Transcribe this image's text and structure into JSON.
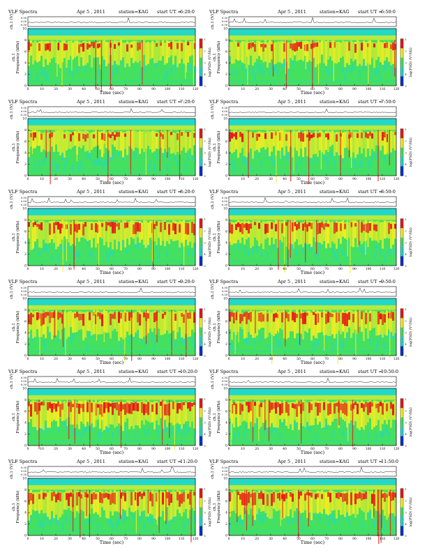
{
  "page": {
    "header": {
      "product": "VLF Spectra",
      "date": "Apr 5 , 2011",
      "station": "station=KAG",
      "start_prefix": "start UT ="
    },
    "labels": {
      "ch_axis": "ch.1 (V)",
      "freq_axis_line1": "ch.1",
      "freq_axis_line2": "Frequency (kHz)",
      "time_axis": "Time (sec)",
      "colorbar_axis": "log(PSD) (V²/Hz)"
    }
  },
  "chart_data": [
    {
      "type": "heatmap",
      "panel": 1,
      "start_ut": "6:20:0",
      "intensity": 0.4
    },
    {
      "type": "heatmap",
      "panel": 2,
      "start_ut": "6:50:0",
      "intensity": 0.42
    },
    {
      "type": "heatmap",
      "panel": 3,
      "start_ut": "7:20:0",
      "intensity": 0.38
    },
    {
      "type": "heatmap",
      "panel": 4,
      "start_ut": "7:50:0",
      "intensity": 0.45
    },
    {
      "type": "heatmap",
      "panel": 5,
      "start_ut": "8:20:0",
      "intensity": 0.62
    },
    {
      "type": "heatmap",
      "panel": 6,
      "start_ut": "8:50:0",
      "intensity": 0.6
    },
    {
      "type": "heatmap",
      "panel": 7,
      "start_ut": "9:20:0",
      "intensity": 0.66
    },
    {
      "type": "heatmap",
      "panel": 8,
      "start_ut": "9:50:0",
      "intensity": 0.7
    },
    {
      "type": "heatmap",
      "panel": 9,
      "start_ut": "10:20:0",
      "intensity": 0.72
    },
    {
      "type": "heatmap",
      "panel": 10,
      "start_ut": "10:50:0",
      "intensity": 0.72
    },
    {
      "type": "heatmap",
      "panel": 11,
      "start_ut": "11:20:0",
      "intensity": 0.74
    },
    {
      "type": "heatmap",
      "panel": 12,
      "start_ut": "11:50:0",
      "intensity": 0.72
    }
  ],
  "axes": {
    "x": {
      "min": 0,
      "max": 120,
      "ticks": [
        0,
        10,
        20,
        30,
        40,
        50,
        60,
        70,
        80,
        90,
        100,
        110,
        120
      ]
    },
    "freq": {
      "min": 0,
      "max": 10,
      "ticks": [
        0,
        2,
        4,
        6,
        8,
        10
      ]
    },
    "ch": {
      "ticks": [
        "0.30",
        "0.00",
        "-0.30"
      ]
    },
    "colorbar_ticks": [
      "-1",
      "-2",
      "-3",
      "-4",
      "-5"
    ]
  },
  "colors": {
    "low": "#0033cc",
    "mid_low": "#22d8c8",
    "mid": "#44e060",
    "high": "#f5ee20",
    "peak": "#e81818",
    "frame": "#000000"
  }
}
